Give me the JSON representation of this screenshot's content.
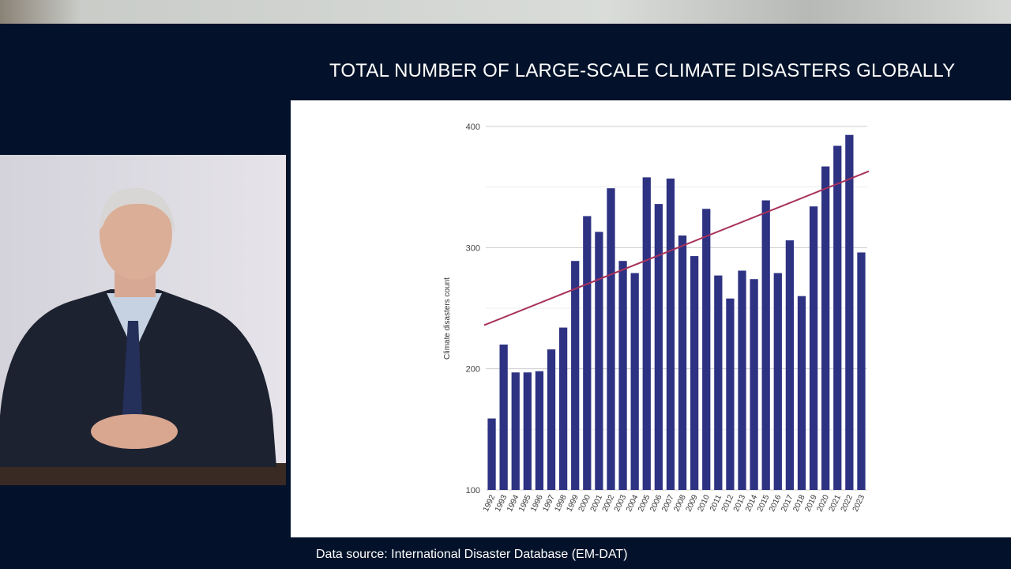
{
  "chart_data": {
    "type": "bar",
    "title": "TOTAL NUMBER OF LARGE-SCALE CLIMATE DISASTERS GLOBALLY",
    "y_label": "Climate disasters count",
    "categories": [
      "1992",
      "1993",
      "1994",
      "1995",
      "1996",
      "1997",
      "1998",
      "1999",
      "2000",
      "2001",
      "2002",
      "2003",
      "2004",
      "2005",
      "2006",
      "2007",
      "2008",
      "2009",
      "2010",
      "2011",
      "2012",
      "2013",
      "2014",
      "2015",
      "2016",
      "2017",
      "2018",
      "2019",
      "2020",
      "2021",
      "2022",
      "2023"
    ],
    "values": [
      159,
      220,
      197,
      197,
      198,
      216,
      234,
      289,
      326,
      313,
      349,
      289,
      279,
      358,
      336,
      357,
      310,
      293,
      332,
      277,
      258,
      281,
      274,
      339,
      279,
      306,
      260,
      334,
      367,
      384,
      393,
      296
    ],
    "color": "#2e3282",
    "trendline": {
      "color": "#a8325a",
      "values": [
        236,
        363
      ]
    },
    "ylim": [
      100,
      400
    ],
    "yticks": [
      100,
      200,
      300,
      400
    ],
    "minor_yticks": [
      150,
      250,
      350
    ],
    "grid": true
  },
  "source": "Data source: International Disaster Database (EM-DAT)"
}
